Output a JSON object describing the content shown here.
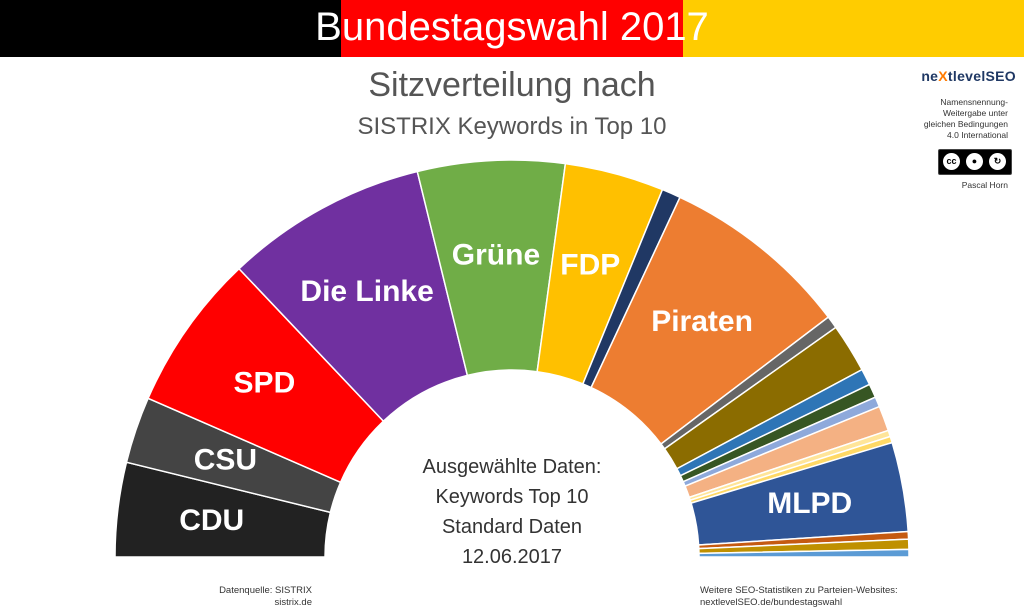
{
  "banner": {
    "title": "Bundestagswahl 2017",
    "colors": [
      "#000000",
      "#ff0000",
      "#ffcc00"
    ]
  },
  "title": "Sitzverteilung nach",
  "subtitle": "SISTRIX Keywords in Top 10",
  "center_note": {
    "lines": [
      "Ausgewählte Daten:",
      "Keywords Top 10",
      "Standard Daten",
      "12.06.2017"
    ]
  },
  "brand": {
    "name_start": "ne",
    "name_x": "X",
    "name_end": "tlevelSEO"
  },
  "license": {
    "lines": [
      "Namensnennung-",
      "Weitergabe unter",
      "gleichen Bedingungen",
      "4.0 International"
    ],
    "badge_cc": "cc",
    "badge_by": "BY",
    "badge_sa": "SA",
    "author": "Pascal Horn"
  },
  "source": {
    "lines": [
      "Datenquelle: SISTRIX",
      "sistrix.de"
    ]
  },
  "more": {
    "lines": [
      "Weitere SEO-Statistiken zu Parteien-Websites:",
      "nextlevelSEO.de/bundestagswahl"
    ]
  },
  "chart_data": {
    "type": "pie",
    "title": "Sitzverteilung nach",
    "subtitle": "SISTRIX Keywords in Top 10",
    "note": "semicircle (parliament seat distribution)",
    "series": [
      {
        "name": "CDU",
        "value": 7.5,
        "color": "#222222",
        "show_label": true
      },
      {
        "name": "CSU",
        "value": 5.3,
        "color": "#444444",
        "show_label": true
      },
      {
        "name": "SPD",
        "value": 12.5,
        "color": "#ff0000",
        "show_label": true
      },
      {
        "name": "Die Linke",
        "value": 16.1,
        "color": "#7030a0",
        "show_label": true
      },
      {
        "name": "Grüne",
        "value": 11.7,
        "color": "#70ad47",
        "show_label": true
      },
      {
        "name": "FDP",
        "value": 7.9,
        "color": "#ffc000",
        "show_label": true
      },
      {
        "name": "",
        "value": 1.5,
        "color": "#203864",
        "show_label": false
      },
      {
        "name": "Piraten",
        "value": 15.1,
        "color": "#ed7d31",
        "show_label": true
      },
      {
        "name": "",
        "value": 1.0,
        "color": "#666666",
        "show_label": false
      },
      {
        "name": "",
        "value": 3.9,
        "color": "#8b6c00",
        "show_label": false
      },
      {
        "name": "",
        "value": 1.3,
        "color": "#2e75b6",
        "show_label": false
      },
      {
        "name": "",
        "value": 1.1,
        "color": "#375623",
        "show_label": false
      },
      {
        "name": "",
        "value": 0.8,
        "color": "#8ea9db",
        "show_label": false
      },
      {
        "name": "",
        "value": 2.0,
        "color": "#f4b183",
        "show_label": false
      },
      {
        "name": "",
        "value": 0.5,
        "color": "#ffe599",
        "show_label": false
      },
      {
        "name": "",
        "value": 0.5,
        "color": "#ffd966",
        "show_label": false
      },
      {
        "name": "",
        "value": 7.1,
        "color": "#2f5597",
        "show_label": true,
        "label": "MLPD"
      },
      {
        "name": "",
        "value": 0.6,
        "color": "#c55a11",
        "show_label": false
      },
      {
        "name": "",
        "value": 0.8,
        "color": "#bf9000",
        "show_label": false
      },
      {
        "name": "",
        "value": 0.6,
        "color": "#5b9bd5",
        "show_label": false
      }
    ]
  }
}
